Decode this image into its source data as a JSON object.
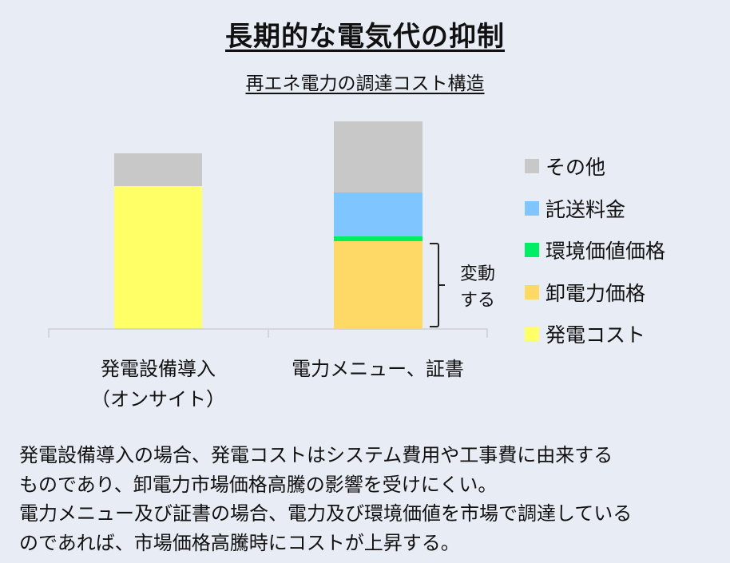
{
  "header": {
    "title": "長期的な電気代の抑制",
    "subtitle": "再エネ電力の調達コスト構造"
  },
  "chart_data": {
    "type": "bar",
    "stacked": true,
    "title": "再エネ電力の調達コスト構造",
    "xlabel": "",
    "ylabel": "",
    "grid": false,
    "y_axis_shown": false,
    "legend_position": "right",
    "categories": [
      "発電設備導入（オンサイト）",
      "電力メニュー、証書"
    ],
    "series": [
      {
        "name": "発電コスト",
        "color": "#ffff66",
        "values": [
          178,
          0
        ]
      },
      {
        "name": "卸電力価格",
        "color": "#ffd966",
        "values": [
          0,
          109
        ]
      },
      {
        "name": "環境価値価格",
        "color": "#00ee66",
        "values": [
          0,
          6
        ]
      },
      {
        "name": "託送料金",
        "color": "#7fc5ff",
        "values": [
          0,
          55
        ]
      },
      {
        "name": "その他",
        "color": "#c8c8c8",
        "values": [
          41,
          89
        ]
      }
    ],
    "units": "relative (pixel heights; no numeric axis shown)",
    "annotations": [
      {
        "text": "変動する",
        "target": "電力メニュー、証書: 卸電力価格",
        "style": "bracket"
      }
    ]
  },
  "chart": {
    "categories": [
      {
        "label_line1": "発電設備導入",
        "label_line2": "（オンサイト）"
      },
      {
        "label_line1": "電力メニュー、証書",
        "label_line2": ""
      }
    ],
    "annotation": {
      "line1": "変動",
      "line2": "する"
    }
  },
  "legend": {
    "items": [
      {
        "label": "その他",
        "color": "#c8c8c8"
      },
      {
        "label": "託送料金",
        "color": "#7fc5ff"
      },
      {
        "label": "環境価値価格",
        "color": "#00ee66"
      },
      {
        "label": "卸電力価格",
        "color": "#ffd966"
      },
      {
        "label": "発電コスト",
        "color": "#ffff66"
      }
    ]
  },
  "note": {
    "lines": [
      "発電設備導入の場合、発電コストはシステム費用や工事費に由来する",
      "ものであり、卸電力市場価格高騰の影響を受けにくい。",
      "電力メニュー及び証書の場合、電力及び環境価値を市場で調達している",
      "のであれば、市場価格高騰時にコストが上昇する。"
    ]
  }
}
